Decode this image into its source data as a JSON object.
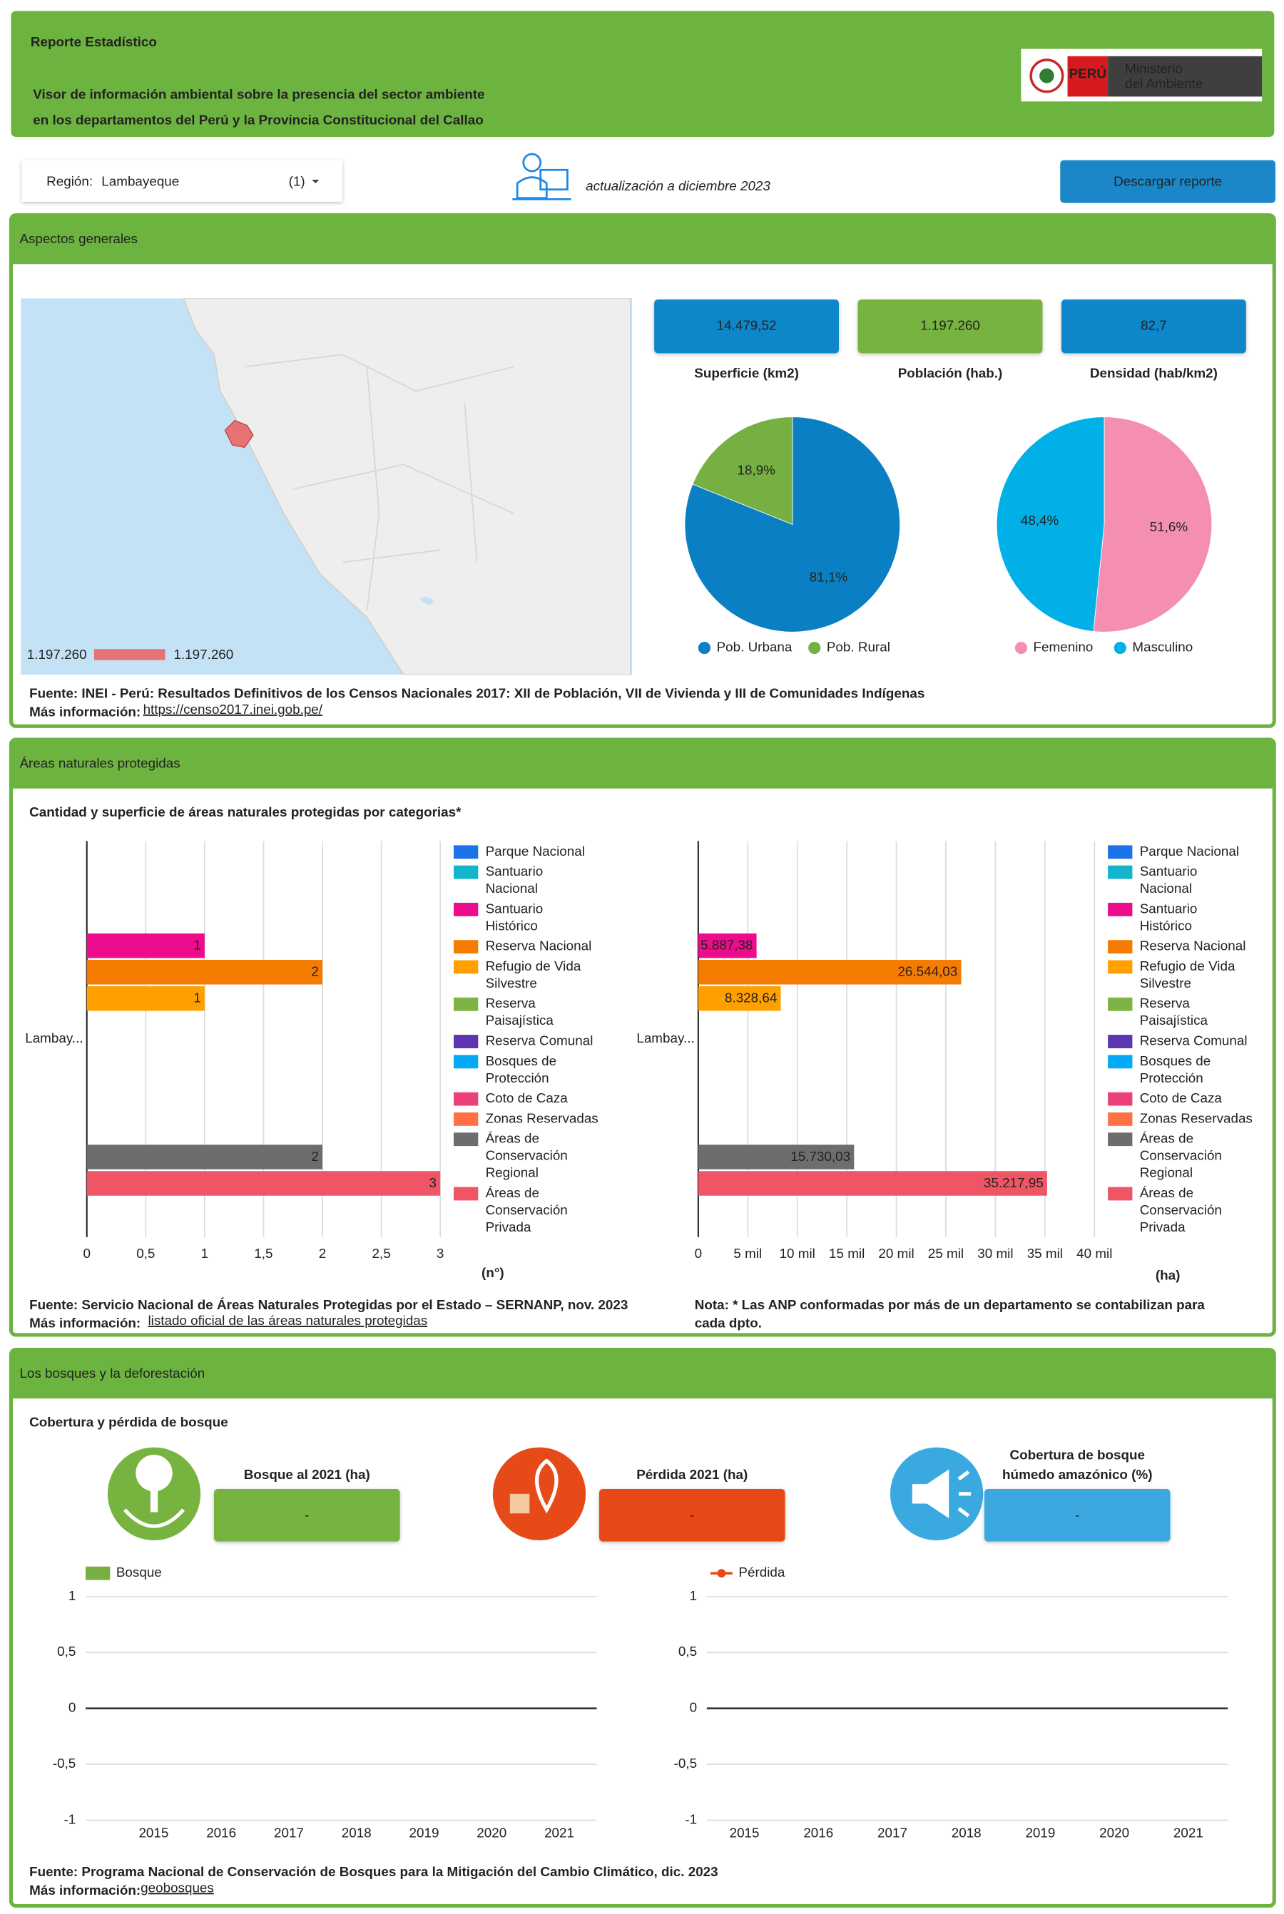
{
  "header": {
    "title": "Reporte Estadístico",
    "subtitle": [
      "Visor de información ambiental sobre la presencia del sector ambiente",
      "en los departamentos del Perú y la Provincia Constitucional del Callao"
    ],
    "logo": {
      "country": "PERÚ",
      "ministry": [
        "Ministerio",
        "del Ambiente"
      ]
    }
  },
  "controls": {
    "region_label": "Región:",
    "region_value": "Lambayeque",
    "region_count": "(1)",
    "update_note": "actualización a diciembre 2023",
    "download_button": "Descargar reporte"
  },
  "general": {
    "title": "Aspectos generales",
    "map_legend": [
      "1.197.260",
      "1.197.260"
    ],
    "kpis": [
      {
        "value": "14.479,52",
        "label": "Superficie (km2)",
        "color": "#0b86ca"
      },
      {
        "value": "1.197.260",
        "label": "Población (hab.)",
        "color": "#76b33f"
      },
      {
        "value": "82,7",
        "label": "Densidad (hab/km2)",
        "color": "#0b86ca"
      }
    ],
    "source": "Fuente: INEI - Perú: Resultados Definitivos de los Censos Nacionales 2017: XII de Población, VII de Vivienda y III de Comunidades Indígenas",
    "more_label": "Más información:",
    "link": "https://censo2017.inei.gob.pe/"
  },
  "protected_areas": {
    "title": "Áreas naturales protegidas",
    "subtitle": "Cantidad y superficie de áreas naturales protegidas por categorias*",
    "source": "Fuente: Servicio Nacional de Áreas Naturales Protegidas por el Estado – SERNANP, nov. 2023",
    "more_label": "Más información:",
    "link": "listado oficial de las áreas naturales protegidas",
    "note": [
      "Nota: * Las ANP conformadas por más de un departamento se contabilizan para",
      "cada dpto."
    ]
  },
  "forests": {
    "title": "Los bosques y la deforestación",
    "subtitle": "Cobertura y pérdida de bosque",
    "kpis": [
      {
        "label": [
          "Bosque al 2021 (ha)"
        ],
        "value": "-",
        "color": "#76b33f"
      },
      {
        "label": [
          "Pérdida 2021 (ha)"
        ],
        "value": "-",
        "color": "#e64a19"
      },
      {
        "label": [
          "Cobertura de bosque",
          "húmedo amazónico (%)"
        ],
        "value": "-",
        "color": "#3aa9df"
      }
    ],
    "source": "Fuente: Programa Nacional de Conservación de Bosques para la Mitigación del Cambio Climático, dic. 2023",
    "more_label": "Más información:",
    "link": "geobosques"
  },
  "chart_data": [
    {
      "type": "pie",
      "categories": [
        "Pob. Urbana",
        "Pob. Rural"
      ],
      "values": [
        81.1,
        18.9
      ],
      "value_labels": [
        "81,1%",
        "18,9%"
      ],
      "colors": [
        "#0a7fc4",
        "#76b043"
      ]
    },
    {
      "type": "pie",
      "categories": [
        "Femenino",
        "Masculino"
      ],
      "values": [
        51.6,
        48.4
      ],
      "value_labels": [
        "51,6%",
        "48,4%"
      ],
      "colors": [
        "#f48fb1",
        "#00b0e6"
      ]
    },
    {
      "type": "bar",
      "orientation": "horizontal",
      "categories": [
        "Lambay..."
      ],
      "xlabel": "(n°)",
      "xlim": [
        0,
        3
      ],
      "xticks": [
        0,
        {
          "value": 0.5,
          "label": "0,5"
        },
        1,
        {
          "value": 1.5,
          "label": "1,5"
        },
        2,
        {
          "value": 2.5,
          "label": "2,5"
        },
        3
      ],
      "grid": true,
      "series": [
        {
          "name": "Parque Nacional",
          "color": "#1a73e8",
          "values": [
            null
          ]
        },
        {
          "name": "Santuario Nacional",
          "color": "#12b5cb",
          "values": [
            null
          ]
        },
        {
          "name": "Santuario Histórico",
          "color": "#ec0c8c",
          "values": [
            1
          ]
        },
        {
          "name": "Reserva Nacional",
          "color": "#f57c00",
          "values": [
            2
          ]
        },
        {
          "name": "Refugio de Vida Silvestre",
          "color": "#ffa000",
          "values": [
            1
          ]
        },
        {
          "name": "Reserva Paisajística",
          "color": "#7cb342",
          "values": [
            null
          ]
        },
        {
          "name": "Reserva Comunal",
          "color": "#5e35b1",
          "values": [
            null
          ]
        },
        {
          "name": "Bosques de Protección",
          "color": "#03a9f4",
          "values": [
            null
          ]
        },
        {
          "name": "Coto de Caza",
          "color": "#ec407a",
          "values": [
            null
          ]
        },
        {
          "name": "Zonas Reservadas",
          "color": "#ff7043",
          "values": [
            null
          ]
        },
        {
          "name": "Áreas de Conservación Regional",
          "color": "#6d6d6d",
          "values": [
            2
          ]
        },
        {
          "name": "Áreas de Conservación Privada",
          "color": "#ef5565",
          "values": [
            3
          ]
        }
      ]
    },
    {
      "type": "bar",
      "orientation": "horizontal",
      "categories": [
        "Lambay..."
      ],
      "xlabel": "(ha)",
      "xlim": [
        0,
        40000
      ],
      "xticks": [
        0,
        {
          "value": 5000,
          "label": "5 mil"
        },
        {
          "value": 10000,
          "label": "10 mil"
        },
        {
          "value": 15000,
          "label": "15 mil"
        },
        {
          "value": 20000,
          "label": "20 mil"
        },
        {
          "value": 25000,
          "label": "25 mil"
        },
        {
          "value": 30000,
          "label": "30 mil"
        },
        {
          "value": 35000,
          "label": "35 mil"
        },
        {
          "value": 40000,
          "label": "40 mil"
        }
      ],
      "grid": true,
      "series": [
        {
          "name": "Parque Nacional",
          "color": "#1a73e8",
          "values": [
            null
          ]
        },
        {
          "name": "Santuario Nacional",
          "color": "#12b5cb",
          "values": [
            null
          ]
        },
        {
          "name": "Santuario Histórico",
          "color": "#ec0c8c",
          "values": [
            5887.38
          ],
          "value_labels": [
            "5.887,38"
          ]
        },
        {
          "name": "Reserva Nacional",
          "color": "#f57c00",
          "values": [
            26544.03
          ],
          "value_labels": [
            "26.544,03"
          ]
        },
        {
          "name": "Refugio de Vida Silvestre",
          "color": "#ffa000",
          "values": [
            8328.64
          ],
          "value_labels": [
            "8.328,64"
          ]
        },
        {
          "name": "Reserva Paisajística",
          "color": "#7cb342",
          "values": [
            null
          ]
        },
        {
          "name": "Reserva Comunal",
          "color": "#5e35b1",
          "values": [
            null
          ]
        },
        {
          "name": "Bosques de Protección",
          "color": "#03a9f4",
          "values": [
            null
          ]
        },
        {
          "name": "Coto de Caza",
          "color": "#ec407a",
          "values": [
            null
          ]
        },
        {
          "name": "Zonas Reservadas",
          "color": "#ff7043",
          "values": [
            null
          ]
        },
        {
          "name": "Áreas de Conservación Regional",
          "color": "#6d6d6d",
          "values": [
            15730.03
          ],
          "value_labels": [
            "15.730,03"
          ]
        },
        {
          "name": "Áreas de Conservación Privada",
          "color": "#ef5565",
          "values": [
            35217.95
          ],
          "value_labels": [
            "35.217,95"
          ]
        }
      ]
    },
    {
      "type": "bar",
      "categories": [
        "2015",
        "2016",
        "2017",
        "2018",
        "2019",
        "2020",
        "2021"
      ],
      "ylim": [
        -1,
        1
      ],
      "yticks": [
        -1,
        {
          "value": -0.5,
          "label": "-0,5"
        },
        0,
        {
          "value": 0.5,
          "label": "0,5"
        },
        1
      ],
      "grid": true,
      "series": [
        {
          "name": "Bosque",
          "color": "#76b043",
          "values": [
            null,
            null,
            null,
            null,
            null,
            null,
            null
          ]
        }
      ]
    },
    {
      "type": "line",
      "categories": [
        "2015",
        "2016",
        "2017",
        "2018",
        "2019",
        "2020",
        "2021"
      ],
      "ylim": [
        -1,
        1
      ],
      "yticks": [
        -1,
        {
          "value": -0.5,
          "label": "-0,5"
        },
        0,
        {
          "value": 0.5,
          "label": "0,5"
        },
        1
      ],
      "grid": true,
      "series": [
        {
          "name": "Pérdida",
          "color": "#e64a19",
          "values": [
            null,
            null,
            null,
            null,
            null,
            null,
            null
          ]
        }
      ]
    }
  ]
}
